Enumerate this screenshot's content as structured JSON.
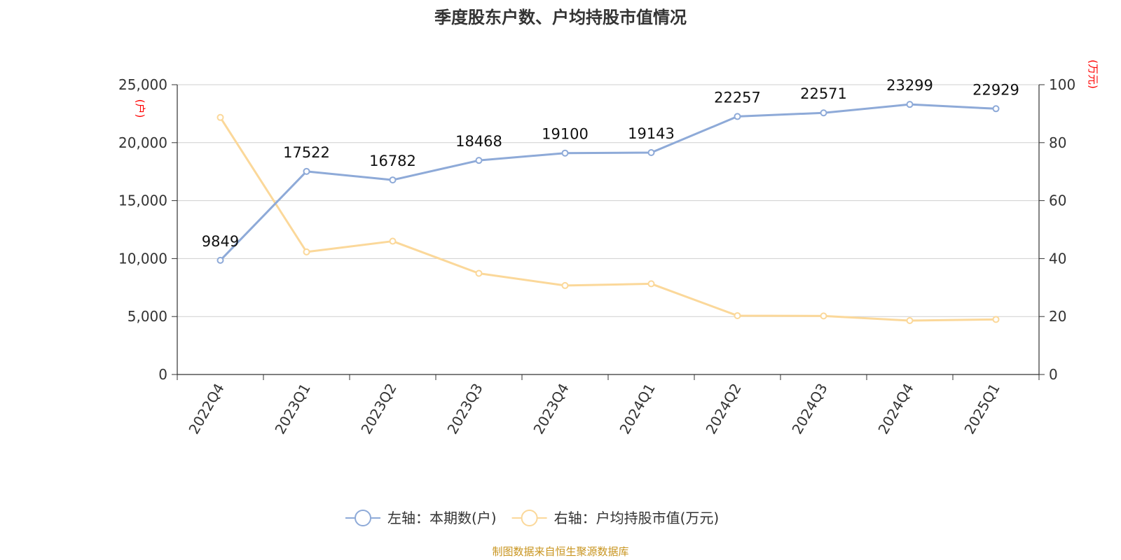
{
  "chart_data": {
    "type": "line",
    "title": "季度股东户数、户均持股市值情况",
    "categories": [
      "2022Q4",
      "2023Q1",
      "2023Q2",
      "2023Q3",
      "2023Q4",
      "2024Q1",
      "2024Q2",
      "2024Q3",
      "2024Q4",
      "2025Q1"
    ],
    "series": [
      {
        "name": "左轴：本期数(户)",
        "axis": "left",
        "color": "#8eaad8",
        "values": [
          9849,
          17522,
          16782,
          18468,
          19100,
          19143,
          22257,
          22571,
          23299,
          22929
        ],
        "labels": [
          "9849",
          "17522",
          "16782",
          "18468",
          "19100",
          "19143",
          "22257",
          "22571",
          "23299",
          "22929"
        ]
      },
      {
        "name": "右轴：户均持股市值(万元)",
        "axis": "right",
        "color": "#fbd89a",
        "values": [
          88.7,
          42.3,
          46.0,
          34.9,
          30.7,
          31.3,
          20.3,
          20.2,
          18.6,
          19.0
        ]
      }
    ],
    "left_axis": {
      "unit": "(户)",
      "ylim": [
        0,
        25000
      ],
      "ticks": [
        "0",
        "5,000",
        "10,000",
        "15,000",
        "20,000",
        "25,000"
      ]
    },
    "right_axis": {
      "unit": "(万元)",
      "ylim": [
        0,
        100
      ],
      "ticks": [
        "0",
        "20",
        "40",
        "60",
        "80",
        "100"
      ]
    },
    "grid": true,
    "legend_position": "bottom-center",
    "source": "制图数据来自恒生聚源数据库"
  }
}
